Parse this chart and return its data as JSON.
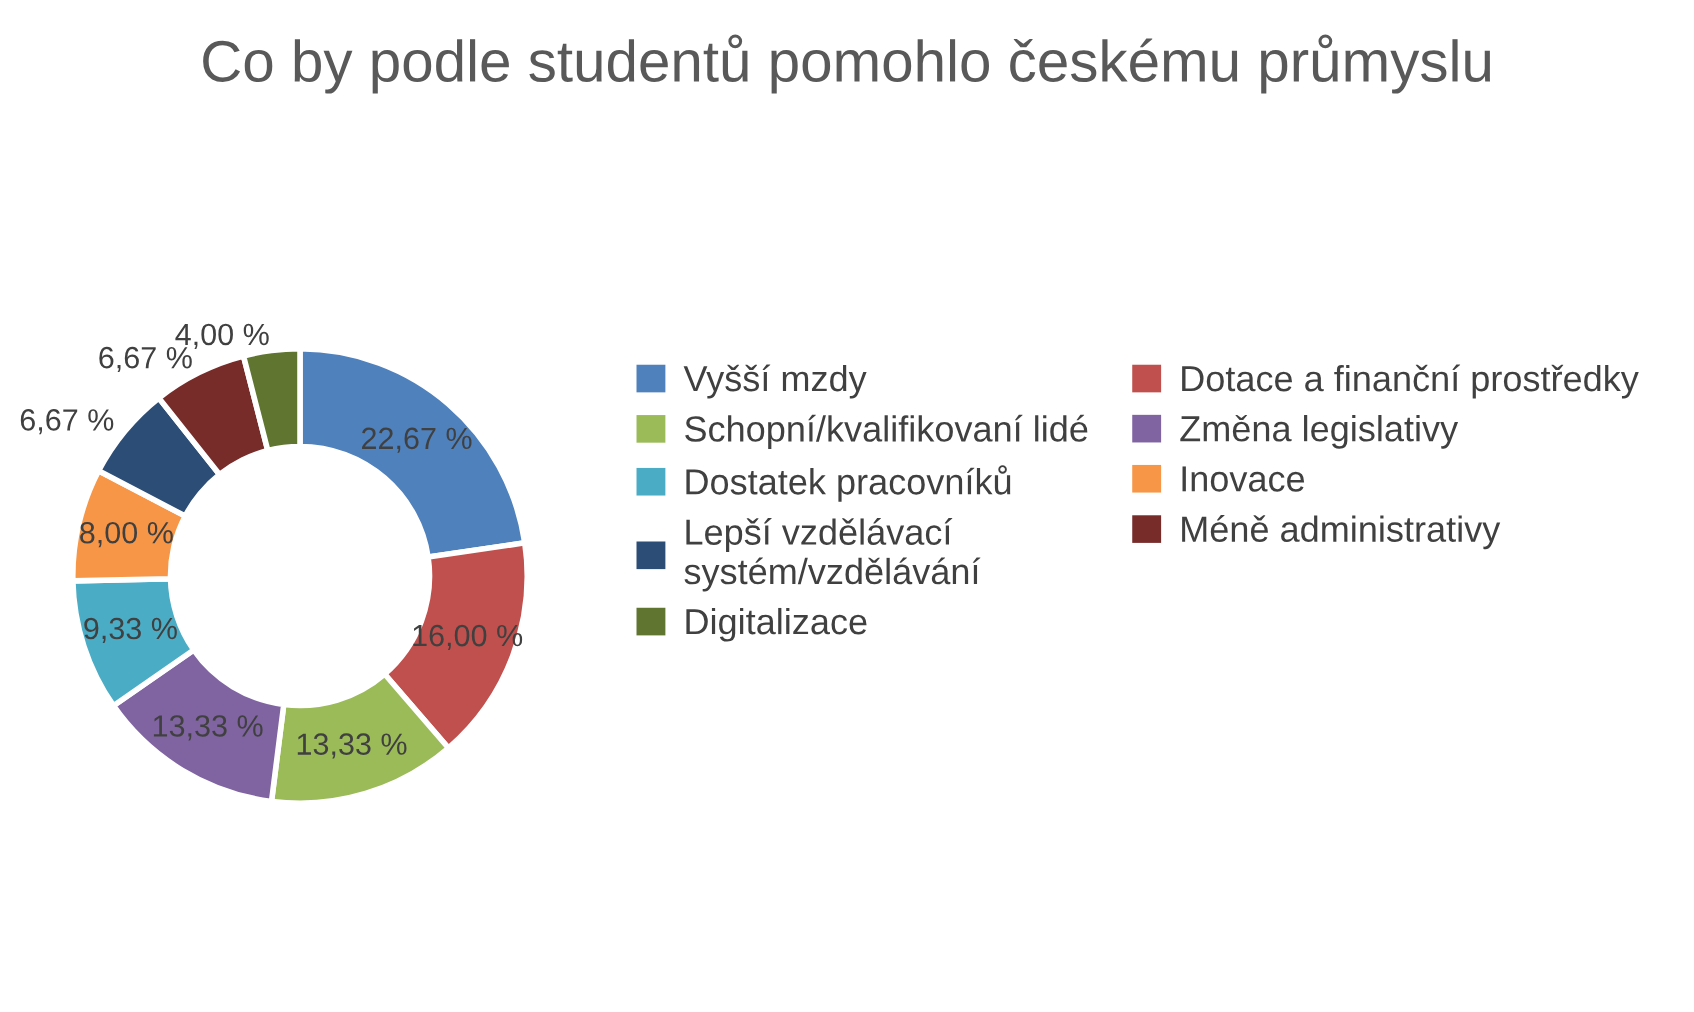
{
  "chart_data": {
    "type": "donut",
    "title": "Co by podle studentů pomohlo českému průmyslu",
    "categories": [
      "Vyšší mzdy",
      "Dotace a finanční prostředky",
      "Schopní/kvalifikovaní lidé",
      "Změna legislativy",
      "Dostatek pracovníků",
      "Inovace",
      "Lepší vzdělávací\nsystém/vzdělávání",
      "Méně administrativy",
      "Digitalizace"
    ],
    "values": [
      22.67,
      16.0,
      13.33,
      13.33,
      9.33,
      8.0,
      6.67,
      6.67,
      4.0
    ],
    "value_labels": [
      "22,67 %",
      "16,00 %",
      "13,33 %",
      "13,33 %",
      "9,33 %",
      "8,00 %",
      "6,67 %",
      "6,67 %",
      "4,00 %"
    ],
    "colors": [
      "#4f81bd",
      "#c0504d",
      "#9bbb59",
      "#8064a2",
      "#4bacc6",
      "#f79646",
      "#2c4d75",
      "#772c2a",
      "#5f7530"
    ],
    "legend": "right"
  }
}
